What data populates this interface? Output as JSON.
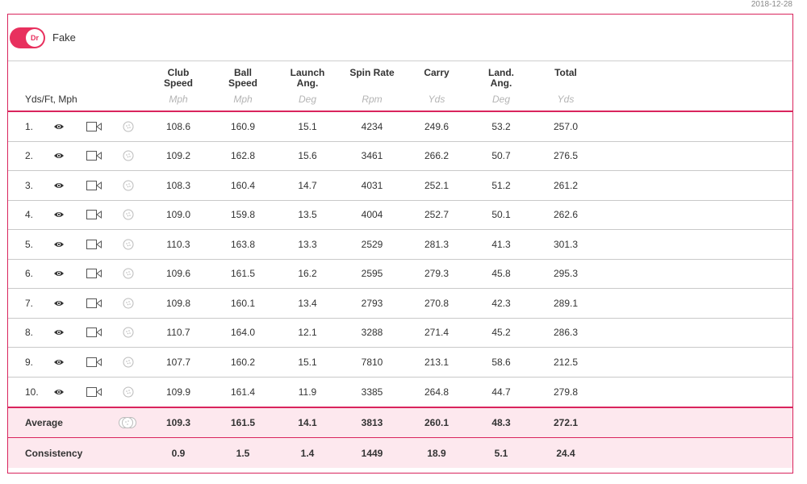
{
  "date": "2018-12-28",
  "club": {
    "badge": "Dr",
    "name": "Fake",
    "accent": "#e8305e"
  },
  "units_label": "Yds/Ft, Mph",
  "columns": [
    {
      "title": "Club\nSpeed",
      "unit": "Mph"
    },
    {
      "title": "Ball\nSpeed",
      "unit": "Mph"
    },
    {
      "title": "Launch\nAng.",
      "unit": "Deg"
    },
    {
      "title": "Spin Rate",
      "unit": "Rpm"
    },
    {
      "title": "Carry",
      "unit": "Yds"
    },
    {
      "title": "Land.\nAng.",
      "unit": "Deg"
    },
    {
      "title": "Total",
      "unit": "Yds"
    }
  ],
  "shots": [
    {
      "num": "1.",
      "values": [
        "108.6",
        "160.9",
        "15.1",
        "4234",
        "249.6",
        "53.2",
        "257.0"
      ]
    },
    {
      "num": "2.",
      "values": [
        "109.2",
        "162.8",
        "15.6",
        "3461",
        "266.2",
        "50.7",
        "276.5"
      ]
    },
    {
      "num": "3.",
      "values": [
        "108.3",
        "160.4",
        "14.7",
        "4031",
        "252.1",
        "51.2",
        "261.2"
      ]
    },
    {
      "num": "4.",
      "values": [
        "109.0",
        "159.8",
        "13.5",
        "4004",
        "252.7",
        "50.1",
        "262.6"
      ]
    },
    {
      "num": "5.",
      "values": [
        "110.3",
        "163.8",
        "13.3",
        "2529",
        "281.3",
        "41.3",
        "301.3"
      ]
    },
    {
      "num": "6.",
      "values": [
        "109.6",
        "161.5",
        "16.2",
        "2595",
        "279.3",
        "45.8",
        "295.3"
      ]
    },
    {
      "num": "7.",
      "values": [
        "109.8",
        "160.1",
        "13.4",
        "2793",
        "270.8",
        "42.3",
        "289.1"
      ]
    },
    {
      "num": "8.",
      "values": [
        "110.7",
        "164.0",
        "12.1",
        "3288",
        "271.4",
        "45.2",
        "286.3"
      ]
    },
    {
      "num": "9.",
      "values": [
        "107.7",
        "160.2",
        "15.1",
        "7810",
        "213.1",
        "58.6",
        "212.5"
      ]
    },
    {
      "num": "10.",
      "values": [
        "109.9",
        "161.4",
        "11.9",
        "3385",
        "264.8",
        "44.7",
        "279.8"
      ]
    }
  ],
  "summary": [
    {
      "label": "Average",
      "values": [
        "109.3",
        "161.5",
        "14.1",
        "3813",
        "260.1",
        "48.3",
        "272.1"
      ]
    },
    {
      "label": "Consistency",
      "values": [
        "0.9",
        "1.5",
        "1.4",
        "1449",
        "18.9",
        "5.1",
        "24.4"
      ]
    }
  ],
  "icons": {
    "view": "eye-icon",
    "video": "video-camera-icon",
    "ball": "golf-ball-icon",
    "all_balls": "golf-balls-group-icon"
  }
}
